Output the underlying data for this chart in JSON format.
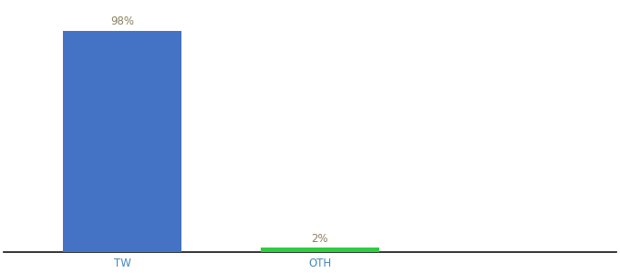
{
  "categories": [
    "TW",
    "OTH"
  ],
  "values": [
    98,
    2
  ],
  "bar_colors": [
    "#4472c4",
    "#2ecc40"
  ],
  "label_colors": [
    "#8b8060",
    "#8b8060"
  ],
  "labels": [
    "98%",
    "2%"
  ],
  "background_color": "#ffffff",
  "ylim": [
    0,
    110
  ],
  "bar_width": 0.6,
  "label_fontsize": 8.5,
  "tick_fontsize": 8.5,
  "x_positions": [
    1,
    2
  ],
  "xlim": [
    0.4,
    3.5
  ]
}
